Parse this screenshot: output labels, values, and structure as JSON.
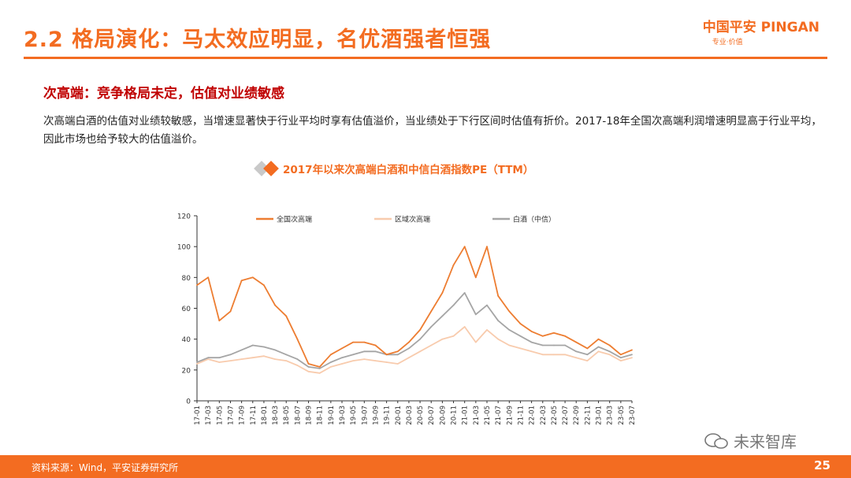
{
  "header": {
    "title": "2.2 格局演化：马太效应明显，名优酒强者恒强",
    "logo_main": "中国平安 PINGAN",
    "logo_sub": "专业·价值"
  },
  "section": {
    "subtitle": "次高端：竞争格局未定，估值对业绩敏感",
    "body": "次高端白酒的估值对业绩较敏感，当增速显著快于行业平均时享有估值溢价，当业绩处于下行区间时估值有折价。2017-18年全国次高端利润增速明显高于行业平均，因此市场也给予较大的估值溢价。"
  },
  "chart_data": {
    "type": "line",
    "title": "2017年以来次高端白酒和中信白酒指数PE（TTM）",
    "x": [
      "17-01",
      "17-03",
      "17-05",
      "17-07",
      "17-09",
      "17-11",
      "18-01",
      "18-03",
      "18-05",
      "18-07",
      "18-09",
      "18-11",
      "19-01",
      "19-03",
      "19-05",
      "19-07",
      "19-09",
      "19-11",
      "20-01",
      "20-03",
      "20-05",
      "20-07",
      "20-09",
      "20-11",
      "21-01",
      "21-03",
      "21-05",
      "21-07",
      "21-09",
      "21-11",
      "22-01",
      "22-03",
      "22-05",
      "22-07",
      "22-09",
      "22-11",
      "23-01",
      "23-03",
      "23-05",
      "23-07"
    ],
    "ylim": [
      0,
      120
    ],
    "yticks": [
      0,
      20,
      40,
      60,
      80,
      100,
      120
    ],
    "legend_position": "top",
    "series": [
      {
        "name": "全国次高端",
        "color": "#ed7d31",
        "values": [
          75,
          80,
          52,
          58,
          78,
          80,
          75,
          62,
          55,
          40,
          24,
          22,
          30,
          34,
          38,
          38,
          36,
          30,
          32,
          38,
          46,
          58,
          70,
          88,
          100,
          80,
          100,
          68,
          58,
          50,
          45,
          42,
          44,
          42,
          38,
          34,
          40,
          36,
          30,
          33
        ]
      },
      {
        "name": "区域次高端",
        "color": "#f8cbad",
        "values": [
          24,
          27,
          25,
          26,
          27,
          28,
          29,
          27,
          26,
          23,
          19,
          18,
          22,
          24,
          26,
          27,
          26,
          25,
          24,
          28,
          32,
          36,
          40,
          42,
          48,
          38,
          46,
          40,
          36,
          34,
          32,
          30,
          30,
          30,
          28,
          26,
          32,
          30,
          26,
          28
        ]
      },
      {
        "name": "白酒（中信）",
        "color": "#a5a5a5",
        "values": [
          25,
          28,
          28,
          30,
          33,
          36,
          35,
          33,
          30,
          27,
          22,
          21,
          25,
          28,
          30,
          32,
          32,
          30,
          30,
          34,
          40,
          48,
          55,
          62,
          70,
          56,
          62,
          52,
          46,
          42,
          38,
          36,
          36,
          36,
          32,
          30,
          35,
          32,
          28,
          30
        ]
      }
    ]
  },
  "footer": {
    "source": "资料来源：Wind，平安证券研究所",
    "page": "25",
    "watermark": "未来智库"
  }
}
